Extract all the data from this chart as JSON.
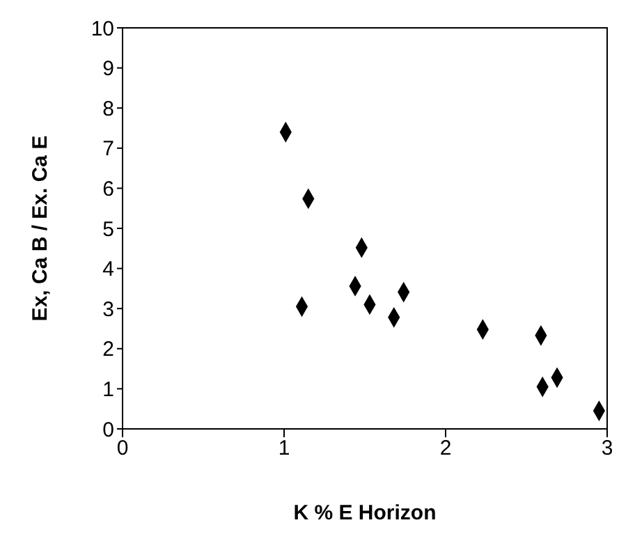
{
  "chart_data": {
    "type": "scatter",
    "xlabel": "K % E Horizon",
    "ylabel": "Ex, Ca B / Ex. Ca E",
    "x": [
      1.01,
      1.15,
      1.11,
      1.48,
      1.44,
      1.53,
      1.68,
      1.74,
      2.23,
      2.59,
      2.6,
      2.69,
      2.95
    ],
    "series": [
      {
        "color": "#000000",
        "values": [
          7.4,
          5.74,
          3.05,
          4.52,
          3.56,
          3.1,
          2.78,
          3.41,
          2.48,
          2.33,
          1.05,
          1.28,
          0.45
        ]
      }
    ],
    "xlim": [
      0,
      3
    ],
    "xticks": [
      0,
      1,
      2,
      3
    ],
    "ylim": [
      0,
      10
    ],
    "yticks": [
      0,
      1,
      2,
      3,
      4,
      5,
      6,
      7,
      8,
      9,
      10
    ],
    "grid": false,
    "legend": false,
    "marker": "diamond"
  }
}
